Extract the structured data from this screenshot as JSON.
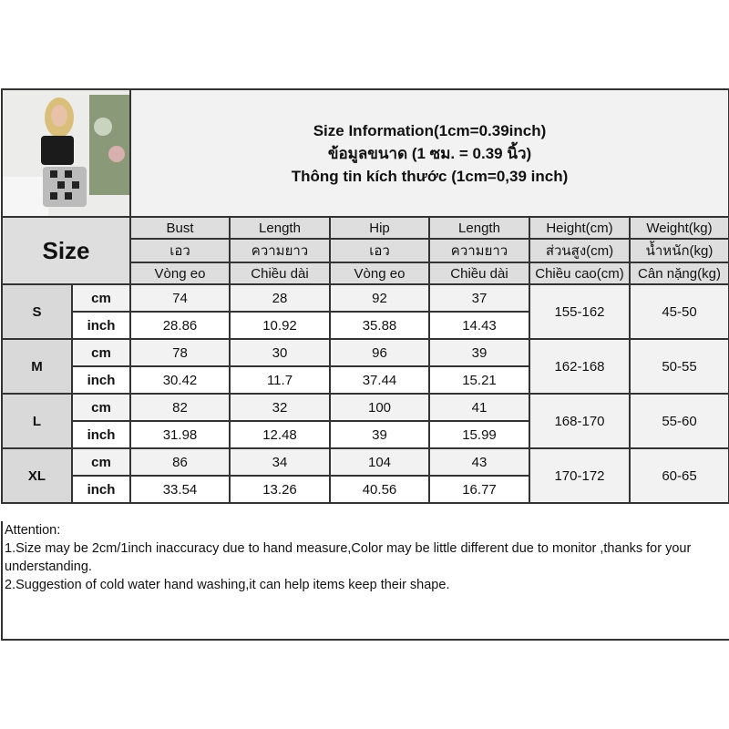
{
  "header": {
    "title_lines": [
      "Size Information(1cm=0.39inch)",
      "ข้อมูลขนาด (1 ซม. = 0.39 นิ้ว)",
      "Thông tin kích thước (1cm=0,39 inch)"
    ],
    "size_label": "Size"
  },
  "columns": [
    {
      "en": "Bust",
      "th": "เอว",
      "vi": "Vòng eo"
    },
    {
      "en": "Length",
      "th": "ความยาว",
      "vi": "Chiều dài"
    },
    {
      "en": "Hip",
      "th": "เอว",
      "vi": "Vòng eo"
    },
    {
      "en": "Length",
      "th": "ความยาว",
      "vi": "Chiều dài"
    },
    {
      "en": "Height(cm)",
      "th": "ส่วนสูง(cm)",
      "vi": "Chiều cao(cm)"
    },
    {
      "en": "Weight(kg)",
      "th": "น้ำหนัก(kg)",
      "vi": "Cân nặng(kg)"
    }
  ],
  "units": {
    "cm": "cm",
    "inch": "inch"
  },
  "sizes": [
    {
      "size": "S",
      "cm": [
        "74",
        "28",
        "92",
        "37"
      ],
      "inch": [
        "28.86",
        "10.92",
        "35.88",
        "14.43"
      ],
      "height": "155-162",
      "weight": "45-50"
    },
    {
      "size": "M",
      "cm": [
        "78",
        "30",
        "96",
        "39"
      ],
      "inch": [
        "30.42",
        "11.7",
        "37.44",
        "15.21"
      ],
      "height": "162-168",
      "weight": "50-55"
    },
    {
      "size": "L",
      "cm": [
        "82",
        "32",
        "100",
        "41"
      ],
      "inch": [
        "31.98",
        "12.48",
        "39",
        "15.99"
      ],
      "height": "168-170",
      "weight": "55-60"
    },
    {
      "size": "XL",
      "cm": [
        "86",
        "34",
        "104",
        "43"
      ],
      "inch": [
        "33.54",
        "13.26",
        "40.56",
        "16.77"
      ],
      "height": "170-172",
      "weight": "60-65"
    }
  ],
  "attention": [
    "Attention:",
    "1.Size may be 2cm/1inch inaccuracy due to hand measure,Color may be little different due to monitor ,thanks for your understanding.",
    "2.Suggestion of cold water hand washing,it can help items keep their shape."
  ]
}
